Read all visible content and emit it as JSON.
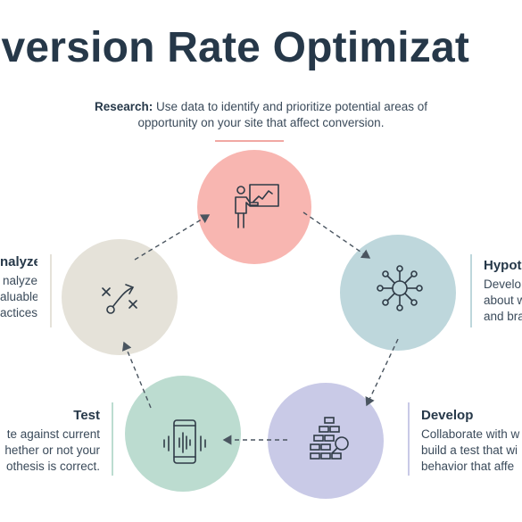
{
  "title": "nversion Rate Optimizat",
  "research": {
    "heading": "Research:",
    "text": " Use data to identify and prioritize potential areas of opportunity on your site that affect conversion."
  },
  "hypothesis": {
    "heading": "Hypot",
    "lines": [
      "Develo",
      "about w",
      "and bra"
    ]
  },
  "develop": {
    "heading": "Develop",
    "lines": [
      "Collaborate with w",
      "build a test that wi",
      "behavior that affe"
    ]
  },
  "test": {
    "heading": "Test",
    "lines": [
      "te against current",
      "hether or not your",
      "othesis is correct."
    ]
  },
  "analyze": {
    "heading": "nalyze",
    "lines": [
      "nalyze",
      "aluable",
      "actices."
    ]
  },
  "colors": {
    "research": "#f8b6b1",
    "hypothesis": "#bed7dc",
    "develop": "#c9cae7",
    "test": "#bcdcd0",
    "analyze": "#e5e2d9",
    "title": "#263849"
  },
  "icons": {
    "research": "presenter-chart-icon",
    "hypothesis": "network-hub-icon",
    "develop": "flowchart-magnifier-icon",
    "test": "phone-soundwave-icon",
    "analyze": "strategy-play-icon"
  }
}
